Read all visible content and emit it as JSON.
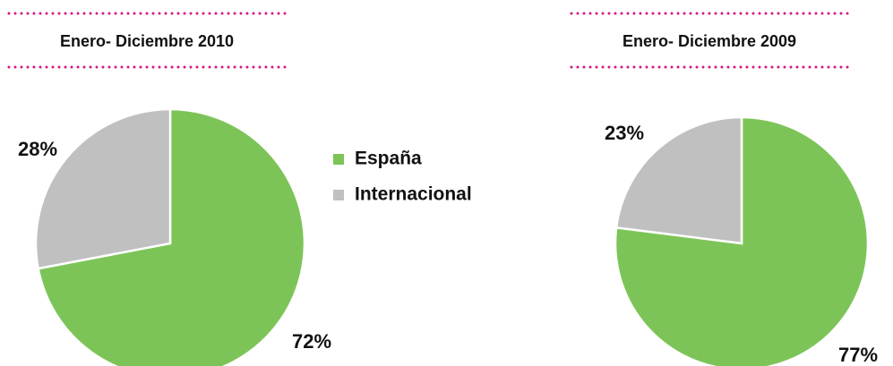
{
  "legend": {
    "labels": [
      "España",
      "Internacional"
    ],
    "colors": [
      "#7dc458",
      "#c0c0c0"
    ]
  },
  "chart_data": [
    {
      "type": "pie",
      "title": "Enero- Diciembre 2010",
      "values": [
        72,
        28
      ],
      "value_labels": [
        "72%",
        "28%"
      ]
    },
    {
      "type": "pie",
      "title": "Enero- Diciembre 2009",
      "values": [
        77,
        23
      ],
      "value_labels": [
        "77%",
        "23%"
      ]
    }
  ]
}
